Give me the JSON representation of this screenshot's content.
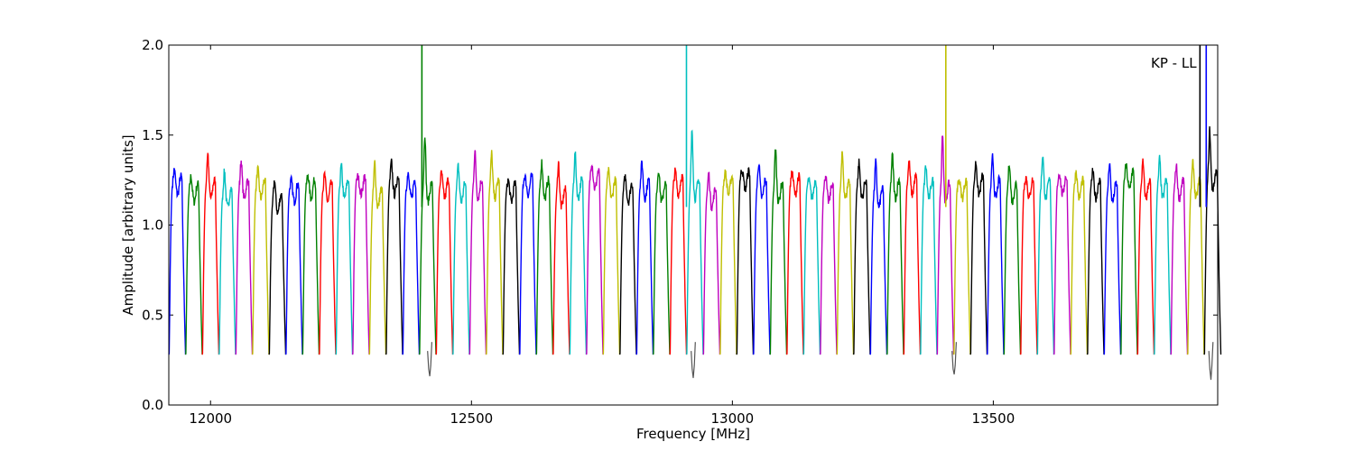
{
  "chart_data": {
    "type": "line",
    "title": "",
    "xlabel": "Frequency [MHz]",
    "ylabel": "Amplitude [arbitrary units]",
    "xlim": [
      11920,
      13930
    ],
    "ylim": [
      0.0,
      2.0
    ],
    "xticks": [
      12000,
      12500,
      13000,
      13500
    ],
    "xtick_labels": [
      "12000",
      "12500",
      "13000",
      "13500"
    ],
    "yticks": [
      0.0,
      0.5,
      1.0,
      1.5,
      2.0
    ],
    "ytick_labels": [
      "0.0",
      "0.5",
      "1.0",
      "1.5",
      "2.0"
    ],
    "grid": false,
    "annotation": "KP - LL",
    "color_cycle": [
      "#0000ff",
      "#008000",
      "#ff0000",
      "#00bfbf",
      "#bf00bf",
      "#bfbf00",
      "#000000"
    ],
    "channel_width_mhz": 32,
    "channel_start_mhz": 11920,
    "channel_count": 63,
    "channel_levels": [
      1.22,
      1.18,
      1.2,
      1.15,
      1.2,
      1.2,
      1.12,
      1.18,
      1.2,
      1.18,
      1.2,
      1.22,
      1.15,
      1.22,
      1.2,
      1.18,
      1.2,
      1.18,
      1.2,
      1.2,
      1.18,
      1.22,
      1.2,
      1.15,
      1.2,
      1.25,
      1.2,
      1.18,
      1.2,
      1.18,
      1.22,
      1.2,
      1.15,
      1.22,
      1.25,
      1.2,
      1.18,
      1.22,
      1.2,
      1.18,
      1.2,
      1.2,
      1.15,
      1.2,
      1.22,
      1.2,
      1.18,
      1.2,
      1.22,
      1.2,
      1.18,
      1.2,
      1.2,
      1.22,
      1.2,
      1.2,
      1.18,
      1.25,
      1.2,
      1.2,
      1.2,
      1.2,
      1.25
    ],
    "channel_peaks": [
      1.26,
      1.22,
      1.35,
      1.25,
      1.31,
      1.26,
      1.2,
      1.2,
      1.23,
      1.23,
      1.28,
      1.22,
      1.3,
      1.3,
      1.23,
      1.46,
      1.24,
      1.28,
      1.36,
      1.35,
      1.2,
      1.22,
      1.3,
      1.3,
      1.35,
      1.3,
      1.25,
      1.22,
      1.3,
      1.26,
      1.25,
      1.48,
      1.24,
      1.24,
      1.26,
      1.3,
      1.38,
      1.24,
      1.2,
      1.23,
      1.35,
      1.3,
      1.3,
      1.34,
      1.3,
      1.28,
      1.47,
      1.2,
      1.3,
      1.33,
      1.3,
      1.22,
      1.34,
      1.24,
      1.25,
      1.25,
      1.3,
      1.28,
      1.3,
      1.32,
      1.28,
      1.3,
      1.48
    ],
    "spikes": [
      {
        "x": 12405,
        "y": 2.0,
        "series": "green"
      },
      {
        "x": 12912,
        "y": 2.0,
        "series": "cyan"
      },
      {
        "x": 13409,
        "y": 2.0,
        "series": "olive"
      },
      {
        "x": 13896,
        "y": 2.0,
        "series": "black"
      },
      {
        "x": 13908,
        "y": 2.0,
        "series": "blue"
      }
    ],
    "dips": [
      {
        "x": 12420,
        "y": 0.16
      },
      {
        "x": 12925,
        "y": 0.15
      },
      {
        "x": 13425,
        "y": 0.17
      },
      {
        "x": 13917,
        "y": 0.14
      }
    ]
  }
}
